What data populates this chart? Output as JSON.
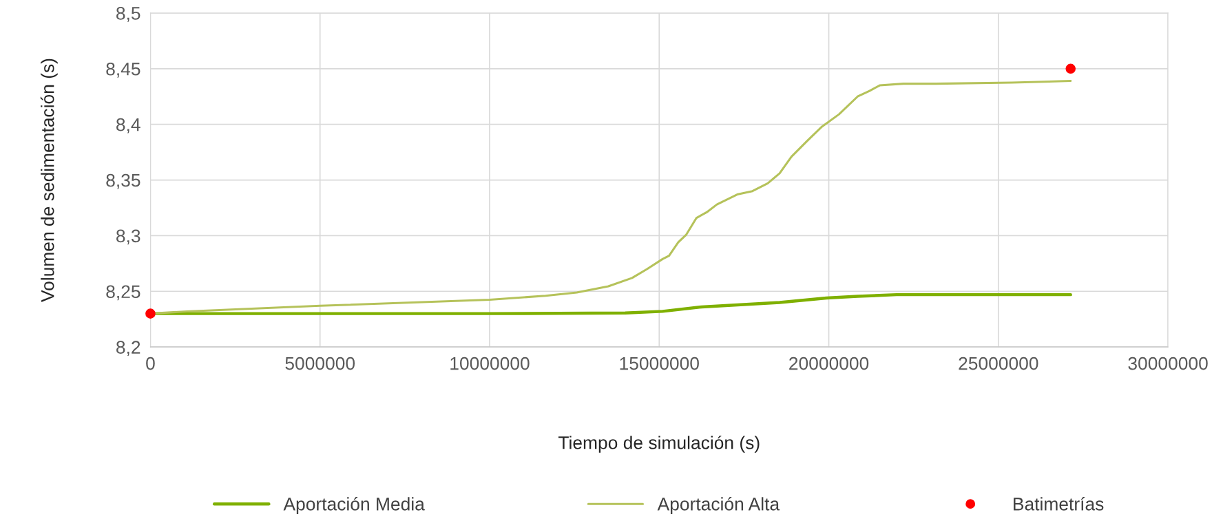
{
  "chart_data": {
    "type": "line",
    "xlabel": "Tiempo de simulación (s)",
    "ylabel": "Volumen de sedimentación (s)",
    "xlim": [
      0,
      30000000
    ],
    "xticks": [
      0,
      5000000,
      10000000,
      15000000,
      20000000,
      25000000,
      30000000
    ],
    "ylim": [
      8.2,
      8.5
    ],
    "yticks": [
      {
        "value": 8.2,
        "label": "8,2"
      },
      {
        "value": 8.25,
        "label": "8,25"
      },
      {
        "value": 8.3,
        "label": "8,3"
      },
      {
        "value": 8.35,
        "label": "8,35"
      },
      {
        "value": 8.4,
        "label": "8,4"
      },
      {
        "value": 8.45,
        "label": "8,45"
      },
      {
        "value": 8.5,
        "label": "8,5"
      }
    ],
    "grid": true,
    "legend": "bottom",
    "line_style": "solid",
    "series": [
      {
        "name": "Aportación Media",
        "color": "#7fb000",
        "marker": "none",
        "x": [
          0,
          5000000,
          10000000,
          14000000,
          15100000,
          16250000,
          18550000,
          19930000,
          20850000,
          22000000,
          25000000,
          27130000
        ],
        "values": [
          8.23,
          8.23,
          8.23,
          8.2305,
          8.232,
          8.236,
          8.24,
          8.244,
          8.2455,
          8.247,
          8.247,
          8.247
        ]
      },
      {
        "name": "Aportación Alta",
        "color": "#b5c25a",
        "marker": "none",
        "x": [
          0,
          1080000,
          5000000,
          10000000,
          11650000,
          12570000,
          13500000,
          14200000,
          14640000,
          15100000,
          15290000,
          15560000,
          15800000,
          16100000,
          16400000,
          16700000,
          17300000,
          17750000,
          18200000,
          18550000,
          18900000,
          19360000,
          19800000,
          20300000,
          20850000,
          21200000,
          21500000,
          22200000,
          23150000,
          25400000,
          27130000
        ],
        "values": [
          8.23,
          8.232,
          8.237,
          8.2425,
          8.246,
          8.249,
          8.2545,
          8.262,
          8.27,
          8.279,
          8.282,
          8.294,
          8.301,
          8.316,
          8.321,
          8.328,
          8.337,
          8.34,
          8.347,
          8.356,
          8.371,
          8.385,
          8.398,
          8.409,
          8.425,
          8.43,
          8.435,
          8.4365,
          8.4365,
          8.4375,
          8.439
        ]
      },
      {
        "name": "Batimetrías",
        "type": "scatter",
        "color": "#ff0000",
        "marker": "circle",
        "x": [
          0,
          27130000
        ],
        "values": [
          8.23,
          8.45
        ]
      }
    ]
  }
}
